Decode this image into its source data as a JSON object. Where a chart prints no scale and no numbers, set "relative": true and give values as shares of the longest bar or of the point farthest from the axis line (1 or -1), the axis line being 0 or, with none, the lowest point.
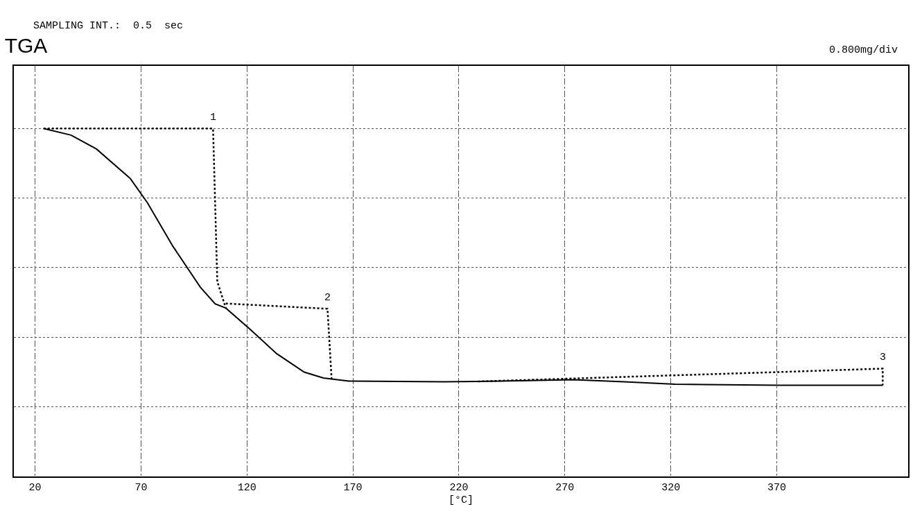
{
  "chart_data": {
    "type": "line",
    "title": "TGA",
    "xlabel": "[°C]",
    "relative": true,
    "xlim": [
      10,
      432
    ],
    "xticks": [
      20,
      70,
      120,
      170,
      220,
      270,
      320,
      370
    ],
    "grid": true,
    "marker": "none",
    "line_style": "solid",
    "series": [
      {
        "color": "#000000",
        "x": [
          24,
          37,
          49,
          65,
          73,
          85,
          98,
          105,
          110,
          122,
          134,
          147,
          156,
          168,
          213,
          229,
          274,
          298,
          322,
          371,
          420
        ],
        "values": [
          1,
          0.981,
          0.941,
          0.856,
          0.787,
          0.662,
          0.544,
          0.496,
          0.484,
          0.42,
          0.353,
          0.3,
          0.283,
          0.274,
          0.272,
          0.273,
          0.278,
          0.272,
          0.265,
          0.262,
          0.262
        ]
      },
      {
        "color": "#000000",
        "line_style": "dotted",
        "x": [
          24,
          104,
          106,
          110
        ],
        "values": [
          1,
          1.0,
          0.56,
          0.484
        ]
      },
      {
        "color": "#000000",
        "line_style": "dotted",
        "x": [
          110,
          158,
          160
        ],
        "values": [
          0.497,
          0.482,
          0.274
        ]
      },
      {
        "color": "#000000",
        "line_style": "dotted",
        "x": [
          229,
          371,
          420,
          420
        ],
        "values": [
          0.273,
          0.3,
          0.31,
          0.262
        ]
      }
    ],
    "annotations": [
      {
        "text": "1",
        "x": 104,
        "y": 1.0
      },
      {
        "text": "2",
        "x": 158,
        "y": 0.482
      },
      {
        "text": "3",
        "x": 420,
        "y": 0.31
      },
      "SAMPLING INT.:  0.5  sec",
      "0.800mg/div"
    ]
  }
}
